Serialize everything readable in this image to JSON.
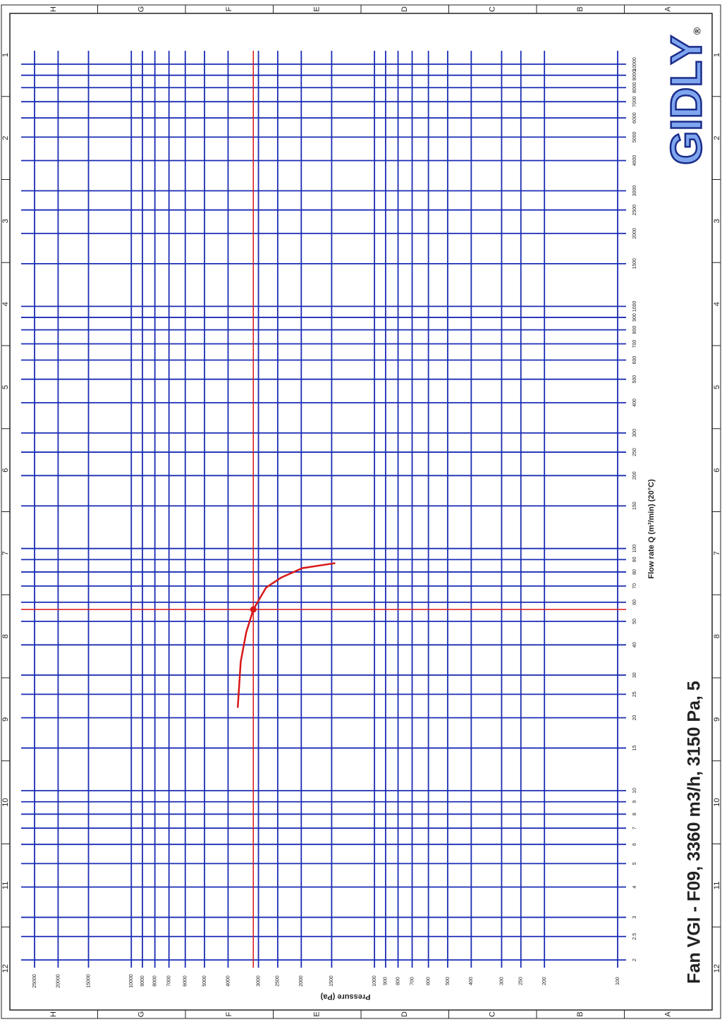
{
  "chart_data": {
    "type": "line",
    "title": "Fan VGI - F09,  3360 m3/h, 3150 Pa, 5",
    "x_label": "Pressure (Pa)",
    "y_label": "Flow rate Q (m³/min) (20°C)",
    "log_x": true,
    "log_y": true,
    "grid": true,
    "xlim": [
      25000,
      100
    ],
    "xticks": [
      25000,
      20000,
      15000,
      10000,
      9000,
      8000,
      7000,
      6000,
      5000,
      4000,
      3000,
      2500,
      2000,
      1500,
      1000,
      900,
      800,
      700,
      600,
      500,
      400,
      300,
      250,
      200,
      100
    ],
    "ylim": [
      10000,
      2
    ],
    "yticks": [
      10000,
      9000,
      8000,
      7000,
      6000,
      5000,
      4000,
      3000,
      2500,
      2000,
      1500,
      1000,
      900,
      800,
      700,
      600,
      500,
      400,
      300,
      250,
      200,
      150,
      100,
      90,
      80,
      70,
      60,
      50,
      40,
      30,
      25,
      20,
      15,
      10,
      9,
      8,
      7,
      6,
      5,
      4,
      3,
      2.5,
      2
    ],
    "x": [
      3650,
      3550,
      3370,
      3150,
      2790,
      2410,
      1980,
      1450
    ],
    "values": [
      22,
      34,
      45,
      56,
      69,
      76,
      83,
      87
    ],
    "color": "#d81818",
    "grid_color": "#1a2db4",
    "operating_point": {
      "x": 3150,
      "y": 56
    }
  },
  "logo": {
    "name": "GIDLY",
    "mark": "®"
  },
  "frame": {
    "columns": [
      "H",
      "G",
      "F",
      "E",
      "D",
      "C",
      "B",
      "A"
    ],
    "rows": [
      "1",
      "2",
      "3",
      "4",
      "5",
      "6",
      "7",
      "8",
      "9",
      "10",
      "11",
      "12"
    ]
  }
}
